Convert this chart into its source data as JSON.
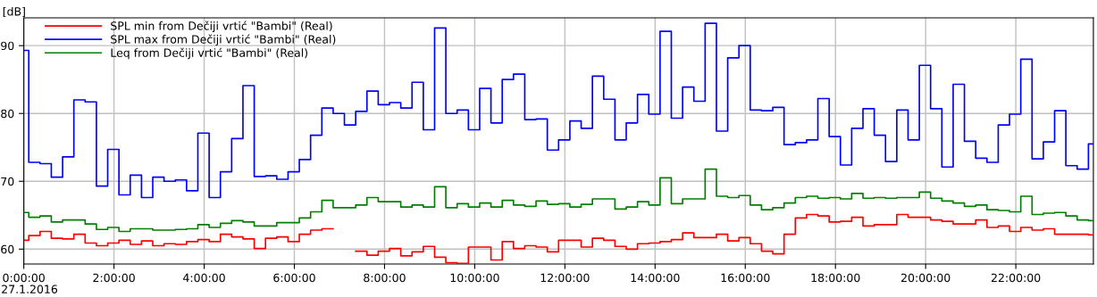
{
  "chart_data": {
    "type": "step",
    "ylabel": "[dB]",
    "annotations": [
      "27.1.2016"
    ],
    "x": [
      0,
      0.11,
      0.36,
      0.61,
      0.86,
      1.11,
      1.36,
      1.61,
      1.86,
      2.11,
      2.36,
      2.61,
      2.86,
      3.11,
      3.36,
      3.61,
      3.86,
      4.11,
      4.36,
      4.61,
      4.86,
      5.11,
      5.36,
      5.61,
      5.86,
      6.11,
      6.36,
      6.61,
      6.86,
      7.11,
      7.36,
      7.61,
      7.86,
      8.11,
      8.36,
      8.61,
      8.86,
      9.11,
      9.36,
      9.61,
      9.86,
      10.11,
      10.36,
      10.61,
      10.86,
      11.11,
      11.36,
      11.61,
      11.86,
      12.11,
      12.36,
      12.61,
      12.86,
      13.11,
      13.36,
      13.61,
      13.86,
      14.11,
      14.36,
      14.61,
      14.86,
      15.11,
      15.36,
      15.61,
      15.86,
      16.11,
      16.36,
      16.61,
      16.86,
      17.11,
      17.36,
      17.61,
      17.86,
      18.11,
      18.36,
      18.61,
      18.86,
      19.11,
      19.36,
      19.61,
      19.86,
      20.11,
      20.36,
      20.61,
      20.86,
      21.11,
      21.36,
      21.61,
      21.86,
      22.11,
      22.36,
      22.61,
      22.86,
      23.11,
      23.36,
      23.61
    ],
    "series": [
      {
        "name": "SPL min from Dečiji vrtić \"Bambi\" (Real)",
        "color": "#ff0000",
        "values": [
          61.3,
          62.0,
          62.6,
          61.6,
          61.5,
          62.2,
          60.9,
          60.5,
          60.9,
          61.3,
          60.7,
          61.2,
          60.5,
          60.8,
          60.7,
          61.1,
          61.4,
          61.1,
          62.2,
          61.8,
          61.5,
          60.1,
          61.6,
          61.8,
          61.1,
          62.2,
          62.8,
          63.0,
          null,
          null,
          59.7,
          59.1,
          59.7,
          60.1,
          59.0,
          59.6,
          60.4,
          58.8,
          58.0,
          57.9,
          60.3,
          60.3,
          58.4,
          61.1,
          60.1,
          60.5,
          60.3,
          59.6,
          61.3,
          61.3,
          60.3,
          61.6,
          61.3,
          60.4,
          60.0,
          60.8,
          60.9,
          61.1,
          61.4,
          62.4,
          61.7,
          61.7,
          62.2,
          61.2,
          61.7,
          60.8,
          59.7,
          59.3,
          62.2,
          64.6,
          65.1,
          64.9,
          64.0,
          64.1,
          64.7,
          63.4,
          63.6,
          63.6,
          65.1,
          64.7,
          64.7,
          64.3,
          64.1,
          63.7,
          63.7,
          64.3,
          63.2,
          63.4,
          62.6,
          63.2,
          62.8,
          63.0,
          62.2,
          62.2,
          62.2,
          62.1
        ]
      },
      {
        "name": "SPL max from Dečiji vrtić \"Bambi\" (Real)",
        "color": "#0000ff",
        "values": [
          89.3,
          72.8,
          72.6,
          70.6,
          73.6,
          82.0,
          81.7,
          69.3,
          74.7,
          68.0,
          70.9,
          67.6,
          70.6,
          70.0,
          70.2,
          68.6,
          77.1,
          67.6,
          71.4,
          76.3,
          84.1,
          70.7,
          70.8,
          70.3,
          71.4,
          73.2,
          76.8,
          80.8,
          80.0,
          78.3,
          80.3,
          83.3,
          81.3,
          81.6,
          80.8,
          84.6,
          77.6,
          92.6,
          80.0,
          80.5,
          77.6,
          83.7,
          78.6,
          85.0,
          85.8,
          79.1,
          79.2,
          74.6,
          76.1,
          78.9,
          77.8,
          85.5,
          82.1,
          76.1,
          78.6,
          82.8,
          79.9,
          92.1,
          79.3,
          83.9,
          81.8,
          93.3,
          77.4,
          88.2,
          90.0,
          80.5,
          80.4,
          80.9,
          75.4,
          75.7,
          76.1,
          82.2,
          76.6,
          72.4,
          77.8,
          80.7,
          76.8,
          72.9,
          80.5,
          76.1,
          87.1,
          80.7,
          72.1,
          84.3,
          75.9,
          73.4,
          72.8,
          78.3,
          79.9,
          88.0,
          73.3,
          75.8,
          80.4,
          72.3,
          71.8,
          75.5
        ]
      },
      {
        "name": "Leq from Dečiji vrtić \"Bambi\" (Real)",
        "color": "#008000",
        "values": [
          65.4,
          64.7,
          64.9,
          64.0,
          64.3,
          64.3,
          63.7,
          62.9,
          63.2,
          62.6,
          63.0,
          63.0,
          62.8,
          62.8,
          62.9,
          63.0,
          63.6,
          63.2,
          63.8,
          64.2,
          64.0,
          63.4,
          63.4,
          63.9,
          63.9,
          64.6,
          65.5,
          67.2,
          66.1,
          66.1,
          66.5,
          67.6,
          67.0,
          67.0,
          66.2,
          66.5,
          66.2,
          69.2,
          66.1,
          66.7,
          66.2,
          66.8,
          66.2,
          67.2,
          66.5,
          66.3,
          67.1,
          66.6,
          66.7,
          66.2,
          66.6,
          67.4,
          67.4,
          65.9,
          66.2,
          67.0,
          66.5,
          70.5,
          66.7,
          67.4,
          67.4,
          71.8,
          67.8,
          67.6,
          67.9,
          66.5,
          65.8,
          66.1,
          66.8,
          67.6,
          67.8,
          67.5,
          67.6,
          67.4,
          68.2,
          67.5,
          67.6,
          67.5,
          67.6,
          67.6,
          68.4,
          67.5,
          67.1,
          66.8,
          66.3,
          66.5,
          65.8,
          65.7,
          65.5,
          67.8,
          65.1,
          65.3,
          65.4,
          64.9,
          64.3,
          64.2
        ]
      }
    ],
    "xlim": [
      0,
      23.72
    ],
    "ylim": [
      57.8,
      94.1
    ],
    "xticks": [
      {
        "value": 0,
        "label": "0:00:00"
      },
      {
        "value": 2,
        "label": "2:00:00"
      },
      {
        "value": 4,
        "label": "4:00:00"
      },
      {
        "value": 6,
        "label": "6:00:00"
      },
      {
        "value": 8,
        "label": "8:00:00"
      },
      {
        "value": 10,
        "label": "10:00:00"
      },
      {
        "value": 12,
        "label": "12:00:00"
      },
      {
        "value": 14,
        "label": "14:00:00"
      },
      {
        "value": 16,
        "label": "16:00:00"
      },
      {
        "value": 18,
        "label": "18:00:00"
      },
      {
        "value": 20,
        "label": "20:00:00"
      },
      {
        "value": 22,
        "label": "22:00:00"
      }
    ],
    "yticks": [
      60,
      70,
      80,
      90
    ],
    "grid": true,
    "legend": "top left"
  }
}
